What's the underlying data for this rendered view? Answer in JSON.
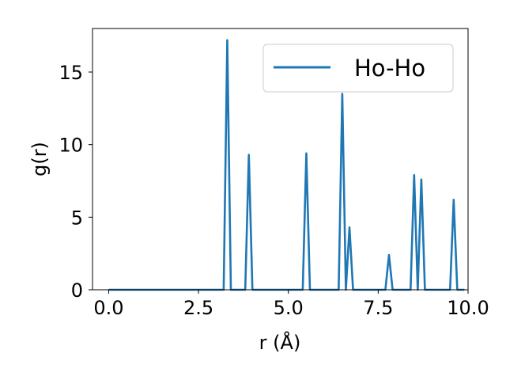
{
  "chart_data": {
    "type": "line",
    "xlabel": "r (Å)",
    "ylabel": "g(r)",
    "xlim": [
      -0.45,
      10.0
    ],
    "ylim": [
      0,
      18.0
    ],
    "x_ticks": [
      0.0,
      2.5,
      5.0,
      7.5,
      10.0
    ],
    "x_tick_labels": [
      "0.0",
      "2.5",
      "5.0",
      "7.5",
      "10.0"
    ],
    "y_ticks": [
      0,
      5,
      10,
      15
    ],
    "y_tick_labels": [
      "0",
      "5",
      "10",
      "15"
    ],
    "grid": false,
    "legend_position": "top-right",
    "series": [
      {
        "name": "Ho-Ho",
        "color": "#1f77b4",
        "x": [
          0.0,
          3.2,
          3.3,
          3.4,
          3.8,
          3.9,
          4.0,
          5.4,
          5.5,
          5.6,
          6.4,
          6.5,
          6.6,
          6.7,
          6.8,
          7.7,
          7.8,
          7.9,
          8.4,
          8.5,
          8.6,
          8.7,
          8.8,
          9.5,
          9.6,
          9.7,
          9.9
        ],
        "y": [
          0.0,
          0.0,
          17.2,
          0.0,
          0.0,
          9.3,
          0.0,
          0.0,
          9.4,
          0.0,
          0.0,
          13.5,
          0.0,
          4.3,
          0.0,
          0.0,
          2.4,
          0.0,
          0.0,
          7.9,
          0.0,
          7.6,
          0.0,
          0.0,
          6.2,
          0.0,
          0.0
        ]
      }
    ]
  }
}
